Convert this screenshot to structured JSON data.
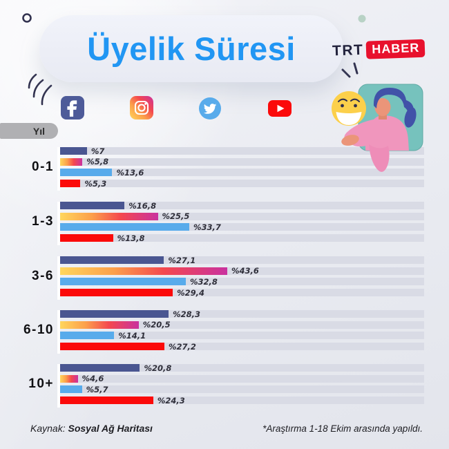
{
  "header": {
    "title": "Üyelik Süresi",
    "logo": {
      "trt": "TRT",
      "haber": "HABER",
      "haber_bg": "#e8112d",
      "trt_color": "#23233d"
    }
  },
  "colors": {
    "title_blue": "#2196f3",
    "track": "#d9dbe5",
    "decor_navy": "#32324f",
    "teal_panel": "#76c2bd",
    "emoji_yellow": "#fcd04b",
    "sweater_pink": "#f096bd",
    "hair_indigo": "#4152a8",
    "skin": "#eb9579",
    "tab_gray": "#b0b0b3",
    "green_dot": "#b8d2c5"
  },
  "chart_data": {
    "type": "bar",
    "orientation": "horizontal",
    "title": "Üyelik Süresi",
    "axis_label": "Yıl",
    "value_unit": "percent",
    "value_prefix": "%",
    "xlim": [
      0,
      95
    ],
    "grid": false,
    "legend_position": "top-icons",
    "categories": [
      "0-1",
      "1-3",
      "3-6",
      "6-10",
      "10+"
    ],
    "series": [
      {
        "name": "Facebook",
        "icon": "facebook-icon",
        "color": "#4a5691",
        "values": [
          7,
          16.8,
          27.1,
          28.3,
          20.8
        ],
        "labels": [
          "%7",
          "%16,8",
          "%27,1",
          "%28,3",
          "%20,8"
        ]
      },
      {
        "name": "Instagram",
        "icon": "instagram-icon",
        "gradient": [
          "#ffd65c",
          "#fca04b",
          "#f4484e",
          "#c9329f"
        ],
        "values": [
          5.8,
          25.5,
          43.6,
          20.5,
          4.6
        ],
        "labels": [
          "%5,8",
          "%25,5",
          "%43,6",
          "%20,5",
          "%4,6"
        ]
      },
      {
        "name": "Twitter",
        "icon": "twitter-icon",
        "color": "#58abeb",
        "values": [
          13.6,
          33.7,
          32.8,
          14.1,
          5.7
        ],
        "labels": [
          "%13,6",
          "%33,7",
          "%32,8",
          "%14,1",
          "%5,7"
        ]
      },
      {
        "name": "YouTube",
        "icon": "youtube-icon",
        "color": "#fb0a0a",
        "values": [
          5.3,
          13.8,
          29.4,
          27.2,
          24.3
        ],
        "labels": [
          "%5,3",
          "%13,8",
          "%29,4",
          "%27,2",
          "%24,3"
        ]
      }
    ]
  },
  "footer": {
    "source_prefix": "Kaynak:",
    "source_name": "Sosyal Ağ Haritası",
    "note": "*Araştırma 1-18 Ekim arasında yapıldı."
  }
}
